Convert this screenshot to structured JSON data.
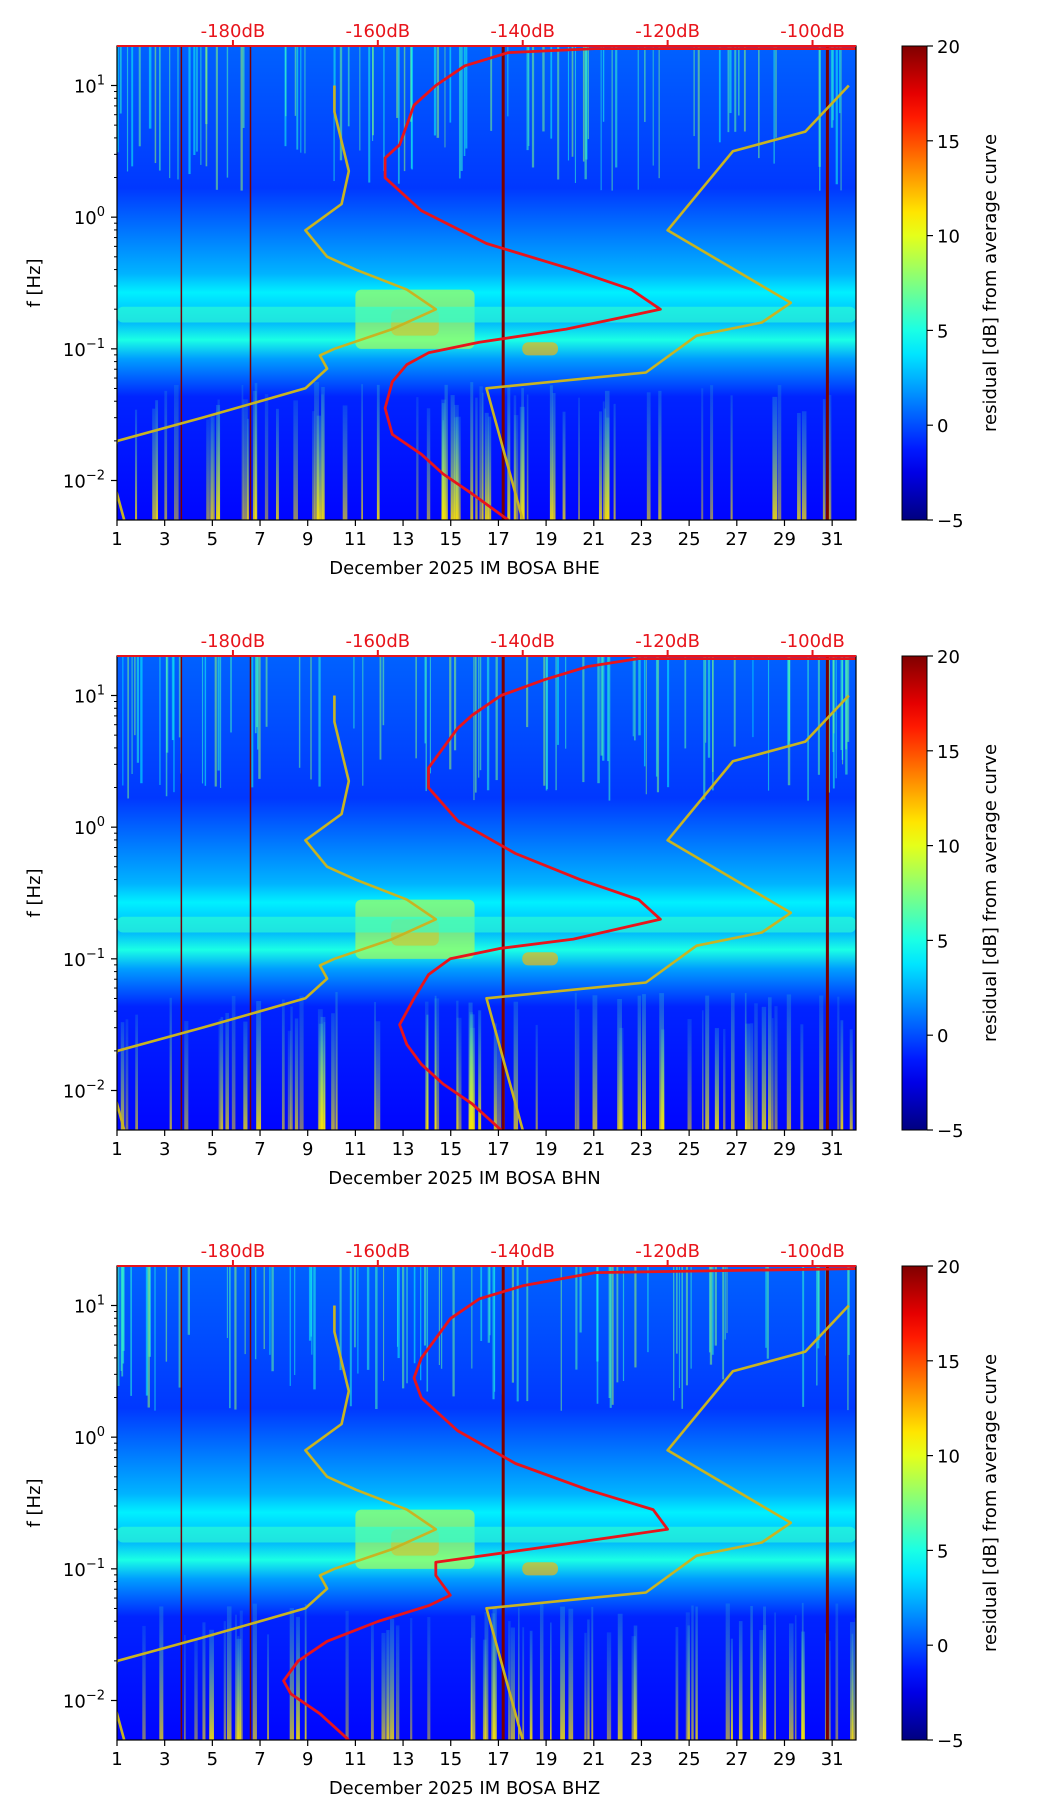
{
  "figure": {
    "colorbar_label": "residual [dB] from average curve",
    "colorbar_ticks": [
      "−5",
      "0",
      "5",
      "10",
      "15",
      "20"
    ],
    "y_label": "f [Hz]",
    "y_ticks": [
      {
        "exp": "1"
      },
      {
        "exp": "0"
      },
      {
        "exp": "−1"
      },
      {
        "exp": "−2"
      }
    ],
    "x_ticks": [
      "1",
      "3",
      "5",
      "7",
      "9",
      "11",
      "13",
      "15",
      "17",
      "19",
      "21",
      "23",
      "25",
      "27",
      "29",
      "31"
    ],
    "db_ticks": [
      "-180dB",
      "-160dB",
      "-140dB",
      "-120dB",
      "-100dB"
    ]
  },
  "colors": {
    "power_curve": "#e8141b",
    "noise_model": "#c8b422",
    "db_axis": "#e8141b"
  },
  "chart_data": [
    {
      "type": "heatmap",
      "channel": "BHE",
      "xlabel": "December 2025 IM BOSA  BHE",
      "ylabel": "f [Hz]",
      "xlim": [
        1,
        32
      ],
      "ylim_log10": [
        -2.3,
        1.3
      ],
      "clim": [
        -5,
        20
      ],
      "top_axis_db_range": [
        -196,
        -94
      ],
      "power_curve": [
        [
          -142,
          -2.3
        ],
        [
          -147,
          -2.1
        ],
        [
          -151,
          -1.95
        ],
        [
          -154,
          -1.8
        ],
        [
          -158,
          -1.65
        ],
        [
          -159,
          -1.45
        ],
        [
          -158,
          -1.25
        ],
        [
          -156,
          -1.12
        ],
        [
          -153,
          -1.03
        ],
        [
          -146,
          -0.95
        ],
        [
          -134,
          -0.85
        ],
        [
          -121,
          -0.7
        ],
        [
          -125,
          -0.55
        ],
        [
          -133,
          -0.4
        ],
        [
          -145,
          -0.2
        ],
        [
          -154,
          0.05
        ],
        [
          -159,
          0.3
        ],
        [
          -159,
          0.45
        ],
        [
          -157,
          0.55
        ],
        [
          -156,
          0.7
        ],
        [
          -155,
          0.85
        ],
        [
          -152,
          1.0
        ],
        [
          -148,
          1.15
        ],
        [
          -142,
          1.25
        ],
        [
          -130,
          1.28
        ],
        [
          -94,
          1.28
        ]
      ],
      "model_low": [
        [
          -195,
          -2.3
        ],
        [
          -196,
          -2.1
        ],
        [
          -197,
          -1.95
        ],
        [
          -196,
          -1.7
        ],
        [
          -184,
          -1.52
        ],
        [
          -170,
          -1.3
        ],
        [
          -167,
          -1.15
        ],
        [
          -168,
          -1.05
        ],
        [
          -166,
          -1.0
        ],
        [
          -158,
          -0.85
        ],
        [
          -152,
          -0.7
        ],
        [
          -156,
          -0.55
        ],
        [
          -163,
          -0.4
        ],
        [
          -167,
          -0.3
        ],
        [
          -170,
          -0.1
        ],
        [
          -165,
          0.1
        ],
        [
          -164,
          0.35
        ],
        [
          -166,
          0.8
        ],
        [
          -166,
          1.0
        ]
      ],
      "model_high": [
        [
          -140,
          -2.3
        ],
        [
          -145,
          -1.3
        ],
        [
          -123,
          -1.18
        ],
        [
          -116,
          -0.9
        ],
        [
          -107,
          -0.8
        ],
        [
          -103,
          -0.65
        ],
        [
          -120,
          -0.1
        ],
        [
          -111,
          0.5
        ],
        [
          -101,
          0.65
        ],
        [
          -95,
          1.0
        ]
      ]
    },
    {
      "type": "heatmap",
      "channel": "BHN",
      "xlabel": "December 2025 IM BOSA  BHN",
      "ylabel": "f [Hz]",
      "xlim": [
        1,
        32
      ],
      "ylim_log10": [
        -2.3,
        1.3
      ],
      "clim": [
        -5,
        20
      ],
      "top_axis_db_range": [
        -196,
        -94
      ],
      "power_curve": [
        [
          -143,
          -2.3
        ],
        [
          -147,
          -2.1
        ],
        [
          -151,
          -1.95
        ],
        [
          -154,
          -1.8
        ],
        [
          -156,
          -1.65
        ],
        [
          -157,
          -1.5
        ],
        [
          -155,
          -1.3
        ],
        [
          -153,
          -1.12
        ],
        [
          -150,
          -1.0
        ],
        [
          -143,
          -0.92
        ],
        [
          -133,
          -0.85
        ],
        [
          -121,
          -0.7
        ],
        [
          -124,
          -0.55
        ],
        [
          -132,
          -0.4
        ],
        [
          -141,
          -0.2
        ],
        [
          -149,
          0.05
        ],
        [
          -153,
          0.3
        ],
        [
          -153,
          0.45
        ],
        [
          -151,
          0.6
        ],
        [
          -149,
          0.75
        ],
        [
          -147,
          0.85
        ],
        [
          -143,
          1.0
        ],
        [
          -137,
          1.12
        ],
        [
          -131,
          1.22
        ],
        [
          -124,
          1.28
        ],
        [
          -94,
          1.28
        ]
      ],
      "model_low": [
        [
          -195,
          -2.3
        ],
        [
          -196,
          -2.1
        ],
        [
          -197,
          -1.95
        ],
        [
          -196,
          -1.7
        ],
        [
          -184,
          -1.52
        ],
        [
          -170,
          -1.3
        ],
        [
          -167,
          -1.15
        ],
        [
          -168,
          -1.05
        ],
        [
          -166,
          -1.0
        ],
        [
          -158,
          -0.85
        ],
        [
          -152,
          -0.7
        ],
        [
          -156,
          -0.55
        ],
        [
          -163,
          -0.4
        ],
        [
          -167,
          -0.3
        ],
        [
          -170,
          -0.1
        ],
        [
          -165,
          0.1
        ],
        [
          -164,
          0.35
        ],
        [
          -166,
          0.8
        ],
        [
          -166,
          1.0
        ]
      ],
      "model_high": [
        [
          -140,
          -2.3
        ],
        [
          -145,
          -1.3
        ],
        [
          -123,
          -1.18
        ],
        [
          -116,
          -0.9
        ],
        [
          -107,
          -0.8
        ],
        [
          -103,
          -0.65
        ],
        [
          -120,
          -0.1
        ],
        [
          -111,
          0.5
        ],
        [
          -101,
          0.65
        ],
        [
          -95,
          1.0
        ]
      ]
    },
    {
      "type": "heatmap",
      "channel": "BHZ",
      "xlabel": "December 2025 IM BOSA  BHZ",
      "ylabel": "f [Hz]",
      "xlim": [
        1,
        32
      ],
      "ylim_log10": [
        -2.3,
        1.3
      ],
      "clim": [
        -5,
        20
      ],
      "top_axis_db_range": [
        -196,
        -94
      ],
      "power_curve": [
        [
          -164,
          -2.3
        ],
        [
          -168,
          -2.1
        ],
        [
          -172,
          -1.95
        ],
        [
          -173,
          -1.85
        ],
        [
          -171,
          -1.7
        ],
        [
          -167,
          -1.55
        ],
        [
          -160,
          -1.4
        ],
        [
          -153,
          -1.28
        ],
        [
          -150,
          -1.2
        ],
        [
          -152,
          -1.05
        ],
        [
          -152,
          -0.95
        ],
        [
          -139,
          -0.85
        ],
        [
          -120,
          -0.7
        ],
        [
          -122,
          -0.55
        ],
        [
          -131,
          -0.4
        ],
        [
          -141,
          -0.2
        ],
        [
          -149,
          0.05
        ],
        [
          -154,
          0.3
        ],
        [
          -155,
          0.45
        ],
        [
          -154,
          0.6
        ],
        [
          -152,
          0.75
        ],
        [
          -150,
          0.9
        ],
        [
          -146,
          1.05
        ],
        [
          -140,
          1.15
        ],
        [
          -130,
          1.25
        ],
        [
          -94,
          1.28
        ]
      ],
      "model_low": [
        [
          -195,
          -2.3
        ],
        [
          -196,
          -2.1
        ],
        [
          -197,
          -1.95
        ],
        [
          -196,
          -1.7
        ],
        [
          -184,
          -1.52
        ],
        [
          -170,
          -1.3
        ],
        [
          -167,
          -1.15
        ],
        [
          -168,
          -1.05
        ],
        [
          -166,
          -1.0
        ],
        [
          -158,
          -0.85
        ],
        [
          -152,
          -0.7
        ],
        [
          -156,
          -0.55
        ],
        [
          -163,
          -0.4
        ],
        [
          -167,
          -0.3
        ],
        [
          -170,
          -0.1
        ],
        [
          -165,
          0.1
        ],
        [
          -164,
          0.35
        ],
        [
          -166,
          0.8
        ],
        [
          -166,
          1.0
        ]
      ],
      "model_high": [
        [
          -140,
          -2.3
        ],
        [
          -145,
          -1.3
        ],
        [
          -123,
          -1.18
        ],
        [
          -116,
          -0.9
        ],
        [
          -107,
          -0.8
        ],
        [
          -103,
          -0.65
        ],
        [
          -120,
          -0.1
        ],
        [
          -111,
          0.5
        ],
        [
          -101,
          0.65
        ],
        [
          -95,
          1.0
        ]
      ]
    }
  ]
}
